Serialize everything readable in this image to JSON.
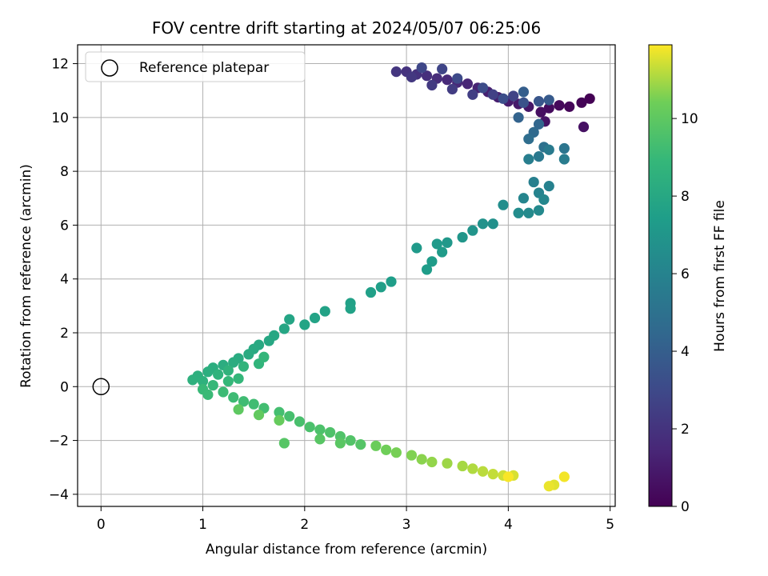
{
  "chart_data": {
    "type": "scatter",
    "title": "FOV centre drift starting at 2024/05/07 06:25:06",
    "xlabel": "Angular distance from reference (arcmin)",
    "ylabel": "Rotation from reference (arcmin)",
    "xlim": [
      -0.23,
      5.05
    ],
    "ylim": [
      -4.45,
      12.7
    ],
    "xticks": [
      0,
      1,
      2,
      3,
      4,
      5
    ],
    "yticks": [
      -4,
      -2,
      0,
      2,
      4,
      6,
      8,
      10,
      12
    ],
    "grid": true,
    "legend": {
      "placement": "top-left",
      "entries": [
        "Reference platepar"
      ]
    },
    "reference_point": {
      "x": 0,
      "y": 0,
      "label": "Reference platepar"
    },
    "colorbar": {
      "label": "Hours from first FF file",
      "range": [
        0,
        11.9
      ],
      "ticks": [
        0,
        2,
        4,
        6,
        8,
        10
      ],
      "colormap": "viridis"
    },
    "series": [
      {
        "values": [
          [
            4.8,
            10.7,
            0.0
          ],
          [
            4.72,
            10.55,
            0.1
          ],
          [
            4.6,
            10.4,
            0.2
          ],
          [
            4.5,
            10.45,
            0.3
          ],
          [
            4.4,
            10.35,
            0.4
          ],
          [
            4.32,
            10.2,
            0.5
          ],
          [
            4.74,
            9.65,
            0.6
          ],
          [
            4.36,
            9.85,
            0.7
          ],
          [
            4.2,
            10.4,
            0.8
          ],
          [
            4.1,
            10.5,
            0.9
          ],
          [
            4.0,
            10.6,
            1.0
          ],
          [
            3.9,
            10.75,
            1.1
          ],
          [
            3.8,
            10.95,
            1.2
          ],
          [
            3.7,
            11.1,
            1.3
          ],
          [
            3.6,
            11.25,
            1.4
          ],
          [
            3.5,
            11.3,
            1.5
          ],
          [
            3.4,
            11.4,
            1.6
          ],
          [
            3.3,
            11.45,
            1.7
          ],
          [
            3.2,
            11.55,
            1.8
          ],
          [
            3.1,
            11.6,
            1.9
          ],
          [
            3.0,
            11.7,
            2.0
          ],
          [
            2.9,
            11.7,
            2.1
          ],
          [
            3.05,
            11.5,
            2.2
          ],
          [
            3.25,
            11.2,
            2.3
          ],
          [
            3.45,
            11.05,
            2.4
          ],
          [
            3.65,
            10.85,
            2.5
          ],
          [
            3.85,
            10.85,
            2.6
          ],
          [
            4.05,
            10.8,
            2.7
          ],
          [
            3.35,
            11.8,
            2.8
          ],
          [
            3.15,
            11.85,
            2.9
          ],
          [
            3.5,
            11.45,
            3.0
          ],
          [
            3.75,
            11.1,
            3.1
          ],
          [
            3.95,
            10.7,
            3.2
          ],
          [
            4.15,
            10.55,
            3.4
          ],
          [
            4.3,
            10.6,
            3.6
          ],
          [
            4.4,
            10.65,
            3.8
          ],
          [
            4.15,
            10.95,
            4.0
          ],
          [
            4.1,
            10.0,
            4.2
          ],
          [
            4.3,
            9.75,
            4.4
          ],
          [
            4.25,
            9.45,
            4.6
          ],
          [
            4.2,
            9.2,
            4.8
          ],
          [
            4.35,
            8.9,
            5.0
          ],
          [
            4.55,
            8.85,
            5.2
          ],
          [
            4.3,
            8.55,
            5.4
          ],
          [
            4.4,
            8.8,
            5.5
          ],
          [
            4.55,
            8.45,
            5.6
          ],
          [
            4.2,
            8.45,
            5.7
          ],
          [
            4.25,
            7.6,
            5.8
          ],
          [
            4.4,
            7.45,
            5.9
          ],
          [
            4.3,
            7.2,
            6.0
          ],
          [
            4.15,
            7.0,
            6.1
          ],
          [
            4.35,
            6.95,
            6.2
          ],
          [
            4.3,
            6.55,
            6.3
          ],
          [
            4.2,
            6.45,
            6.4
          ],
          [
            4.1,
            6.45,
            6.5
          ],
          [
            3.95,
            6.75,
            6.6
          ],
          [
            3.85,
            6.05,
            6.7
          ],
          [
            3.75,
            6.05,
            6.8
          ],
          [
            3.65,
            5.8,
            6.9
          ],
          [
            3.55,
            5.55,
            7.0
          ],
          [
            3.4,
            5.35,
            7.1
          ],
          [
            3.3,
            5.3,
            7.2
          ],
          [
            3.1,
            5.15,
            7.25
          ],
          [
            3.35,
            5.0,
            7.3
          ],
          [
            3.25,
            4.65,
            7.35
          ],
          [
            3.2,
            4.35,
            7.4
          ],
          [
            2.85,
            3.9,
            7.45
          ],
          [
            2.75,
            3.7,
            7.5
          ],
          [
            2.65,
            3.5,
            7.55
          ],
          [
            2.45,
            3.1,
            7.6
          ],
          [
            2.45,
            2.9,
            7.65
          ],
          [
            2.2,
            2.8,
            7.7
          ],
          [
            2.1,
            2.55,
            7.75
          ],
          [
            2.0,
            2.3,
            7.8
          ],
          [
            1.85,
            2.5,
            7.85
          ],
          [
            1.8,
            2.15,
            7.9
          ],
          [
            1.7,
            1.9,
            7.95
          ],
          [
            1.65,
            1.7,
            8.0
          ],
          [
            1.55,
            1.55,
            8.05
          ],
          [
            1.5,
            1.4,
            8.1
          ],
          [
            1.45,
            1.2,
            8.15
          ],
          [
            1.35,
            1.05,
            8.2
          ],
          [
            1.3,
            0.9,
            8.25
          ],
          [
            1.2,
            0.8,
            8.3
          ],
          [
            1.1,
            0.7,
            8.35
          ],
          [
            1.05,
            0.55,
            8.4
          ],
          [
            0.95,
            0.4,
            8.45
          ],
          [
            0.9,
            0.25,
            8.5
          ],
          [
            1.0,
            0.2,
            8.55
          ],
          [
            1.15,
            0.45,
            8.6
          ],
          [
            1.25,
            0.6,
            8.65
          ],
          [
            1.4,
            0.75,
            8.7
          ],
          [
            1.55,
            0.85,
            8.75
          ],
          [
            1.6,
            1.1,
            8.8
          ],
          [
            1.35,
            0.3,
            8.85
          ],
          [
            1.25,
            0.2,
            8.9
          ],
          [
            1.1,
            0.05,
            8.95
          ],
          [
            1.0,
            -0.1,
            9.0
          ],
          [
            1.05,
            -0.3,
            9.05
          ],
          [
            1.2,
            -0.2,
            9.1
          ],
          [
            1.3,
            -0.4,
            9.15
          ],
          [
            1.4,
            -0.55,
            9.2
          ],
          [
            1.5,
            -0.65,
            9.25
          ],
          [
            1.6,
            -0.8,
            9.3
          ],
          [
            1.75,
            -0.95,
            9.35
          ],
          [
            1.85,
            -1.1,
            9.4
          ],
          [
            1.95,
            -1.3,
            9.45
          ],
          [
            2.05,
            -1.5,
            9.5
          ],
          [
            2.15,
            -1.6,
            9.55
          ],
          [
            2.25,
            -1.7,
            9.6
          ],
          [
            2.35,
            -1.85,
            9.65
          ],
          [
            2.45,
            -2.0,
            9.7
          ],
          [
            2.55,
            -2.15,
            9.75
          ],
          [
            1.8,
            -2.1,
            9.8
          ],
          [
            2.15,
            -1.95,
            9.85
          ],
          [
            2.35,
            -2.1,
            9.9
          ],
          [
            1.35,
            -0.85,
            10.0
          ],
          [
            1.55,
            -1.05,
            10.1
          ],
          [
            1.75,
            -1.25,
            10.2
          ],
          [
            2.7,
            -2.2,
            10.3
          ],
          [
            2.8,
            -2.35,
            10.4
          ],
          [
            2.9,
            -2.45,
            10.5
          ],
          [
            3.05,
            -2.55,
            10.6
          ],
          [
            3.15,
            -2.7,
            10.7
          ],
          [
            3.25,
            -2.8,
            10.8
          ],
          [
            3.4,
            -2.85,
            10.9
          ],
          [
            3.55,
            -2.95,
            11.0
          ],
          [
            3.65,
            -3.05,
            11.1
          ],
          [
            3.75,
            -3.15,
            11.2
          ],
          [
            3.85,
            -3.25,
            11.3
          ],
          [
            3.95,
            -3.3,
            11.4
          ],
          [
            4.05,
            -3.3,
            11.5
          ],
          [
            4.45,
            -3.65,
            11.6
          ],
          [
            4.4,
            -3.7,
            11.7
          ],
          [
            4.55,
            -3.35,
            11.8
          ],
          [
            4.0,
            -3.35,
            11.85
          ]
        ]
      }
    ]
  }
}
